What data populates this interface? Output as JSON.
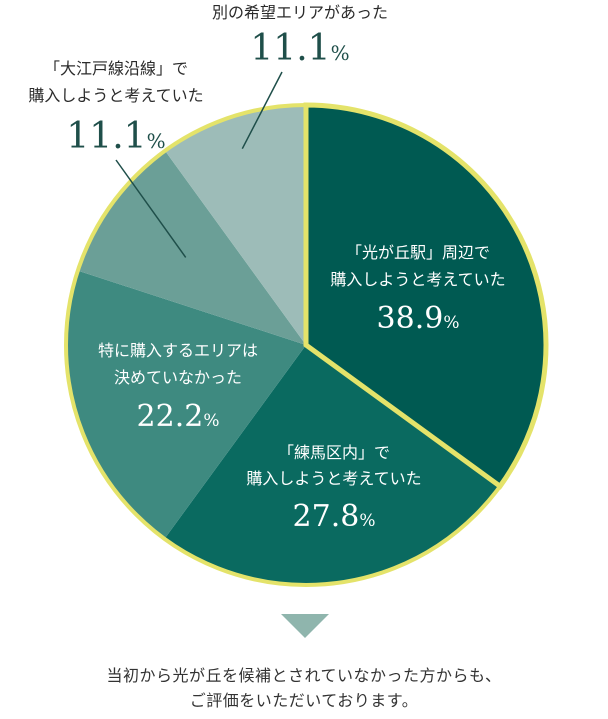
{
  "chart_data": {
    "type": "pie",
    "start_angle_deg": 0,
    "direction": "clockwise",
    "slices": [
      {
        "label_lines": [
          "「光が丘駅」周辺で",
          "購入しようと考えていた"
        ],
        "value": 38.9,
        "value_text": "38.9",
        "unit": "%",
        "color": "#005a52",
        "highlight": true
      },
      {
        "label_lines": [
          "「練馬区内」で",
          "購入しようと考えていた"
        ],
        "value": 27.8,
        "value_text": "27.8",
        "unit": "%",
        "color": "#0a6a60",
        "highlight": false
      },
      {
        "label_lines": [
          "特に購入するエリアは",
          "決めていなかった"
        ],
        "value": 22.2,
        "value_text": "22.2",
        "unit": "%",
        "color": "#3e8a80",
        "highlight": false
      },
      {
        "label_lines": [
          "「大江戸線沿線」で",
          "購入しようと考えていた"
        ],
        "value": 11.1,
        "value_text": "11.1",
        "unit": "%",
        "color": "#6b9f97",
        "highlight": false
      },
      {
        "label_lines": [
          "別の希望エリアがあった"
        ],
        "value": 11.1,
        "value_text": "11.1",
        "unit": "%",
        "color": "#9dbcb8",
        "highlight": false
      }
    ],
    "highlight_color": "#e4e36a"
  },
  "footer": {
    "lines": [
      "当初から光が丘を候補とされていなかった方からも、",
      "ご評価をいただいております。"
    ],
    "arrow_color": "#8fb5ad"
  }
}
